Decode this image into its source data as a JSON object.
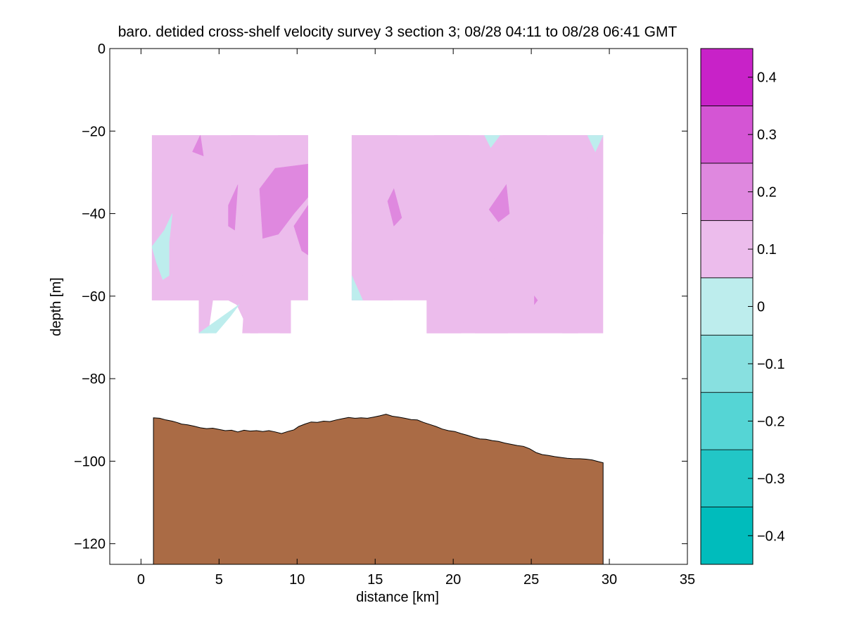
{
  "chart_data": {
    "type": "contour",
    "title": "baro. detided cross-shelf velocity survey 3 section 3; 08/28 04:11 to 08/28 06:41 GMT",
    "xlabel": "distance [km]",
    "ylabel": "depth [m]",
    "xlim": [
      -2,
      35
    ],
    "ylim": [
      -125,
      0
    ],
    "xticks": [
      0,
      5,
      10,
      15,
      20,
      25,
      30,
      35
    ],
    "yticks": [
      0,
      -20,
      -40,
      -60,
      -80,
      -100,
      -120
    ],
    "colorbar": {
      "levels": [
        -0.45,
        -0.35,
        -0.25,
        -0.15,
        -0.05,
        0.05,
        0.15,
        0.25,
        0.35,
        0.45
      ],
      "colors": [
        "#00bcbc",
        "#22c6c6",
        "#55d5d5",
        "#88e0e0",
        "#bdeded",
        "#ecbcec",
        "#df88df",
        "#d455d4",
        "#c822c8",
        "#bb00bb"
      ],
      "ticks": [
        -0.4,
        -0.3,
        -0.2,
        -0.1,
        0,
        0.1,
        0.2,
        0.3,
        0.4
      ],
      "tick_labels": [
        "−0.4",
        "−0.3",
        "−0.2",
        "−0.1",
        "0",
        "0.1",
        "0.2",
        "0.3",
        "0.4"
      ]
    },
    "sections": [
      {
        "name": "block-1",
        "outline": [
          [
            0.7,
            -21
          ],
          [
            10.7,
            -21
          ],
          [
            10.7,
            -61
          ],
          [
            9.6,
            -61
          ],
          [
            9.6,
            -69
          ],
          [
            3.7,
            -69
          ],
          [
            3.7,
            -61
          ],
          [
            0.7,
            -61
          ]
        ],
        "patches": [
          {
            "c": 0.12,
            "pts": [
              [
                0.7,
                -21
              ],
              [
                10.7,
                -21
              ],
              [
                10.7,
                -61
              ],
              [
                9.6,
                -61
              ],
              [
                9.6,
                -69
              ],
              [
                7,
                -69
              ],
              [
                6,
                -61
              ],
              [
                3.7,
                -61
              ],
              [
                0.7,
                -61
              ]
            ]
          },
          {
            "c": 0.07,
            "pts": [
              [
                0.7,
                -30
              ],
              [
                2.5,
                -21
              ],
              [
                3.7,
                -21
              ],
              [
                3.7,
                -30
              ],
              [
                4.6,
                -39
              ],
              [
                4.8,
                -48
              ],
              [
                4.8,
                -61
              ],
              [
                3.7,
                -61
              ],
              [
                0.7,
                -61
              ]
            ]
          },
          {
            "c": 0.07,
            "pts": [
              [
                5.8,
                -21
              ],
              [
                7.3,
                -21
              ],
              [
                6.6,
                -32
              ],
              [
                5.4,
                -39
              ],
              [
                5.2,
                -25
              ]
            ]
          },
          {
            "c": 0.07,
            "pts": [
              [
                8.8,
                -21
              ],
              [
                10.7,
                -21
              ],
              [
                10.7,
                -28
              ],
              [
                9.5,
                -28
              ],
              [
                8.2,
                -31
              ],
              [
                8.5,
                -24
              ]
            ]
          },
          {
            "c": 0.07,
            "pts": [
              [
                5.2,
                -56
              ],
              [
                6.5,
                -55
              ],
              [
                7.5,
                -60
              ],
              [
                7.5,
                -69
              ],
              [
                6.5,
                -69
              ],
              [
                6.6,
                -63
              ],
              [
                5.6,
                -61
              ]
            ]
          },
          {
            "c": 0.07,
            "pts": [
              [
                9.0,
                -64
              ],
              [
                9.6,
                -61
              ],
              [
                9.6,
                -69
              ],
              [
                8.9,
                -69
              ]
            ]
          },
          {
            "c": 0.07,
            "pts": [
              [
                3.7,
                -61
              ],
              [
                4.6,
                -61
              ],
              [
                4.3,
                -69
              ],
              [
                3.7,
                -69
              ]
            ]
          },
          {
            "c": 0.17,
            "pts": [
              [
                7.6,
                -34
              ],
              [
                8.6,
                -29
              ],
              [
                10.7,
                -28
              ],
              [
                10.7,
                -36
              ],
              [
                9.8,
                -40
              ],
              [
                8.8,
                -45
              ],
              [
                7.8,
                -46
              ]
            ]
          },
          {
            "c": 0.17,
            "pts": [
              [
                9.8,
                -43
              ],
              [
                10.7,
                -38
              ],
              [
                10.7,
                -50
              ],
              [
                10.3,
                -49
              ]
            ]
          },
          {
            "c": 0.17,
            "pts": [
              [
                5.6,
                -38
              ],
              [
                6.2,
                -33
              ],
              [
                6.0,
                -44
              ],
              [
                5.6,
                -43
              ]
            ]
          },
          {
            "c": 0.17,
            "pts": [
              [
                3.3,
                -25
              ],
              [
                3.8,
                -21
              ],
              [
                4.0,
                -26
              ]
            ]
          },
          {
            "c": -0.03,
            "pts": [
              [
                0.7,
                -48
              ],
              [
                1.5,
                -44
              ],
              [
                2.0,
                -40
              ],
              [
                1.8,
                -47
              ],
              [
                1.8,
                -55
              ],
              [
                1.4,
                -56
              ],
              [
                1.0,
                -52
              ]
            ]
          },
          {
            "c": -0.03,
            "pts": [
              [
                3.7,
                -69
              ],
              [
                6.3,
                -62
              ],
              [
                5.7,
                -65
              ],
              [
                4.8,
                -69
              ]
            ]
          }
        ]
      },
      {
        "name": "block-2",
        "outline": [
          [
            13.5,
            -21
          ],
          [
            29.6,
            -21
          ],
          [
            29.6,
            -69
          ],
          [
            18.3,
            -69
          ],
          [
            18.3,
            -61
          ],
          [
            13.5,
            -61
          ]
        ],
        "patches": [
          {
            "c": 0.12,
            "pts": [
              [
                13.5,
                -21
              ],
              [
                29.6,
                -21
              ],
              [
                29.6,
                -69
              ],
              [
                18.3,
                -69
              ],
              [
                18.3,
                -61
              ],
              [
                13.5,
                -61
              ]
            ]
          },
          {
            "c": 0.07,
            "pts": [
              [
                14.8,
                -21
              ],
              [
                16.4,
                -21
              ],
              [
                15.2,
                -30
              ],
              [
                14.5,
                -38
              ],
              [
                13.5,
                -40
              ],
              [
                13.5,
                -21
              ]
            ]
          },
          {
            "c": 0.07,
            "pts": [
              [
                18.8,
                -21
              ],
              [
                21.0,
                -21
              ],
              [
                22.5,
                -25
              ],
              [
                20.0,
                -28
              ],
              [
                18.5,
                -26
              ]
            ]
          },
          {
            "c": 0.07,
            "pts": [
              [
                23.2,
                -21
              ],
              [
                26.0,
                -21
              ],
              [
                24.7,
                -25
              ],
              [
                22.6,
                -24
              ]
            ]
          },
          {
            "c": 0.07,
            "pts": [
              [
                26.2,
                -21
              ],
              [
                29.6,
                -21
              ],
              [
                29.6,
                -45
              ],
              [
                28.3,
                -40
              ],
              [
                27.2,
                -28
              ]
            ]
          },
          {
            "c": 0.07,
            "pts": [
              [
                13.5,
                -47
              ],
              [
                16.0,
                -41
              ],
              [
                19.0,
                -44
              ],
              [
                18.4,
                -54
              ],
              [
                17.0,
                -60
              ],
              [
                16.1,
                -61
              ],
              [
                13.5,
                -61
              ]
            ]
          },
          {
            "c": 0.07,
            "pts": [
              [
                20.0,
                -42
              ],
              [
                22.3,
                -40
              ],
              [
                22.8,
                -50
              ],
              [
                21.0,
                -60
              ],
              [
                20.5,
                -69
              ],
              [
                18.3,
                -69
              ],
              [
                18.3,
                -61
              ],
              [
                18.5,
                -52
              ]
            ]
          },
          {
            "c": 0.07,
            "pts": [
              [
                23.5,
                -49
              ],
              [
                24.6,
                -43
              ],
              [
                24.7,
                -57
              ],
              [
                23.5,
                -69
              ],
              [
                21.4,
                -69
              ]
            ]
          },
          {
            "c": 0.07,
            "pts": [
              [
                25.2,
                -53
              ],
              [
                26.1,
                -47
              ],
              [
                26.3,
                -59
              ],
              [
                25.7,
                -64
              ]
            ]
          },
          {
            "c": 0.07,
            "pts": [
              [
                27.2,
                -55
              ],
              [
                28.3,
                -53
              ],
              [
                28.0,
                -69
              ],
              [
                27.0,
                -69
              ]
            ]
          },
          {
            "c": 0.17,
            "pts": [
              [
                15.8,
                -37
              ],
              [
                16.2,
                -34
              ],
              [
                16.7,
                -41
              ],
              [
                16.2,
                -43
              ]
            ]
          },
          {
            "c": 0.17,
            "pts": [
              [
                22.3,
                -39
              ],
              [
                23.4,
                -33
              ],
              [
                23.6,
                -40
              ],
              [
                22.9,
                -42
              ]
            ]
          },
          {
            "c": 0.17,
            "pts": [
              [
                25.2,
                -60
              ],
              [
                25.4,
                -61
              ],
              [
                25.2,
                -62
              ]
            ]
          },
          {
            "c": -0.03,
            "pts": [
              [
                22.0,
                -21
              ],
              [
                23.0,
                -21
              ],
              [
                22.4,
                -24
              ]
            ]
          },
          {
            "c": -0.03,
            "pts": [
              [
                28.6,
                -21
              ],
              [
                29.6,
                -21
              ],
              [
                29.1,
                -25
              ]
            ]
          },
          {
            "c": -0.03,
            "pts": [
              [
                13.5,
                -55
              ],
              [
                14.2,
                -61
              ],
              [
                13.5,
                -61
              ]
            ]
          }
        ]
      }
    ],
    "bathymetry": [
      [
        0.8,
        -89.5
      ],
      [
        1.2,
        -89.6
      ],
      [
        1.6,
        -90.0
      ],
      [
        2.0,
        -90.3
      ],
      [
        2.3,
        -90.6
      ],
      [
        2.6,
        -91.0
      ],
      [
        3.0,
        -91.2
      ],
      [
        3.4,
        -91.5
      ],
      [
        3.8,
        -91.9
      ],
      [
        4.2,
        -92.1
      ],
      [
        4.6,
        -92.0
      ],
      [
        5.0,
        -92.3
      ],
      [
        5.4,
        -92.6
      ],
      [
        5.8,
        -92.5
      ],
      [
        6.2,
        -92.9
      ],
      [
        6.6,
        -92.5
      ],
      [
        7.0,
        -92.7
      ],
      [
        7.4,
        -92.6
      ],
      [
        7.8,
        -92.8
      ],
      [
        8.2,
        -92.6
      ],
      [
        8.6,
        -92.9
      ],
      [
        9.0,
        -93.3
      ],
      [
        9.4,
        -92.8
      ],
      [
        9.8,
        -92.4
      ],
      [
        10.1,
        -91.6
      ],
      [
        10.5,
        -91.0
      ],
      [
        10.9,
        -90.5
      ],
      [
        11.3,
        -90.6
      ],
      [
        11.7,
        -90.3
      ],
      [
        12.1,
        -90.4
      ],
      [
        12.5,
        -90.0
      ],
      [
        12.9,
        -89.7
      ],
      [
        13.3,
        -89.4
      ],
      [
        13.7,
        -89.6
      ],
      [
        14.1,
        -89.5
      ],
      [
        14.5,
        -89.6
      ],
      [
        14.9,
        -89.3
      ],
      [
        15.3,
        -89.0
      ],
      [
        15.7,
        -88.6
      ],
      [
        16.1,
        -89.1
      ],
      [
        16.5,
        -89.3
      ],
      [
        16.9,
        -89.6
      ],
      [
        17.3,
        -89.9
      ],
      [
        17.7,
        -90.0
      ],
      [
        18.1,
        -90.6
      ],
      [
        18.5,
        -91.1
      ],
      [
        18.9,
        -91.6
      ],
      [
        19.3,
        -92.2
      ],
      [
        19.7,
        -92.6
      ],
      [
        20.1,
        -92.8
      ],
      [
        20.5,
        -93.3
      ],
      [
        20.9,
        -93.7
      ],
      [
        21.3,
        -94.2
      ],
      [
        21.7,
        -94.6
      ],
      [
        22.1,
        -94.7
      ],
      [
        22.5,
        -95.0
      ],
      [
        22.9,
        -95.2
      ],
      [
        23.3,
        -95.6
      ],
      [
        23.7,
        -95.9
      ],
      [
        24.1,
        -96.2
      ],
      [
        24.5,
        -96.4
      ],
      [
        24.9,
        -97.0
      ],
      [
        25.3,
        -97.9
      ],
      [
        25.7,
        -98.4
      ],
      [
        26.1,
        -98.6
      ],
      [
        26.5,
        -98.9
      ],
      [
        26.9,
        -99.1
      ],
      [
        27.3,
        -99.3
      ],
      [
        27.7,
        -99.4
      ],
      [
        28.1,
        -99.4
      ],
      [
        28.5,
        -99.5
      ],
      [
        28.9,
        -99.7
      ],
      [
        29.3,
        -100.1
      ],
      [
        29.6,
        -100.4
      ]
    ],
    "bathymetry_color": "#aa6b45"
  }
}
